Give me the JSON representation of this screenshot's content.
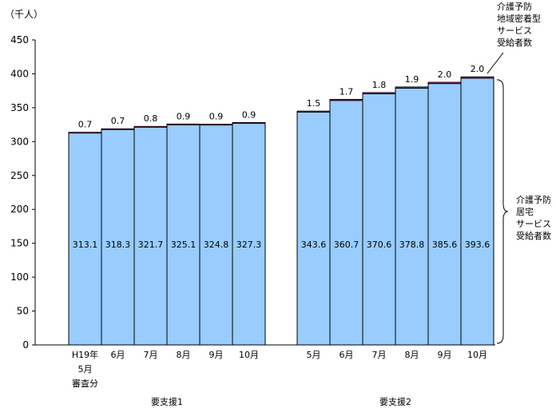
{
  "chart_data": {
    "type": "bar",
    "stacked": true,
    "unit_label": "（千人）",
    "ylim": [
      0,
      450
    ],
    "yticks": [
      0,
      50,
      100,
      150,
      200,
      250,
      300,
      350,
      400,
      450
    ],
    "grid": false,
    "groups": [
      {
        "label": "要支援1",
        "categories": [
          "H19年\n5月\n審査分",
          "6月",
          "7月",
          "8月",
          "9月",
          "10月"
        ],
        "series": [
          {
            "name": "介護予防居宅サービス受給者数",
            "values": [
              313.1,
              318.3,
              321.7,
              325.1,
              324.8,
              327.3
            ],
            "color": "#99ccff"
          },
          {
            "name": "介護予防地域密着型サービス受給者数",
            "values": [
              0.7,
              0.7,
              0.8,
              0.9,
              0.9,
              0.9
            ],
            "color": "#993366"
          }
        ]
      },
      {
        "label": "要支援2",
        "categories": [
          "5月",
          "6月",
          "7月",
          "8月",
          "9月",
          "10月"
        ],
        "series": [
          {
            "name": "介護予防居宅サービス受給者数",
            "values": [
              343.6,
              360.7,
              370.6,
              378.8,
              385.6,
              393.6
            ],
            "color": "#99ccff"
          },
          {
            "name": "介護予防地域密着型サービス受給者数",
            "values": [
              1.5,
              1.7,
              1.8,
              1.9,
              2.0,
              2.0
            ],
            "color": "#993366"
          }
        ]
      }
    ],
    "annotations": {
      "top_label_lines": [
        "介護予防",
        "地域密着型",
        "サービス",
        "受給者数"
      ],
      "right_label_lines": [
        "介護予防",
        "居宅",
        "サービス",
        "受給者数"
      ]
    }
  }
}
